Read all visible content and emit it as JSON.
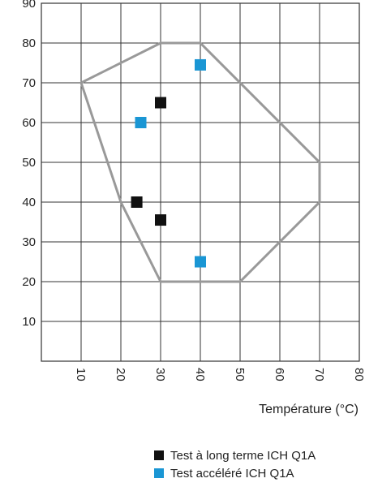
{
  "chart_data": {
    "type": "scatter",
    "xlabel": "Température (°C)",
    "ylabel": "",
    "xlim": [
      0,
      80
    ],
    "ylim": [
      0,
      90
    ],
    "x_ticks": [
      "10",
      "20",
      "30",
      "40",
      "50",
      "60",
      "70",
      "80"
    ],
    "y_ticks": [
      "10",
      "20",
      "30",
      "40",
      "50",
      "60",
      "70",
      "80",
      "90"
    ],
    "grid": true,
    "legend_position": "bottom-right",
    "region": {
      "name": "",
      "color": "#999999",
      "points": [
        [
          10,
          70
        ],
        [
          30,
          80
        ],
        [
          40,
          80
        ],
        [
          70,
          50
        ],
        [
          70,
          40
        ],
        [
          50,
          20
        ],
        [
          30,
          20
        ],
        [
          20,
          40
        ]
      ]
    },
    "series": [
      {
        "name": "Test à long terme ICH Q1A",
        "color": "#111111",
        "points": [
          [
            30,
            65
          ],
          [
            24,
            40
          ],
          [
            30,
            35.5
          ]
        ]
      },
      {
        "name": "Test accéléré ICH Q1A",
        "color": "#1a96d4",
        "points": [
          [
            40,
            74.5
          ],
          [
            25,
            60
          ],
          [
            40,
            25
          ]
        ]
      }
    ]
  }
}
